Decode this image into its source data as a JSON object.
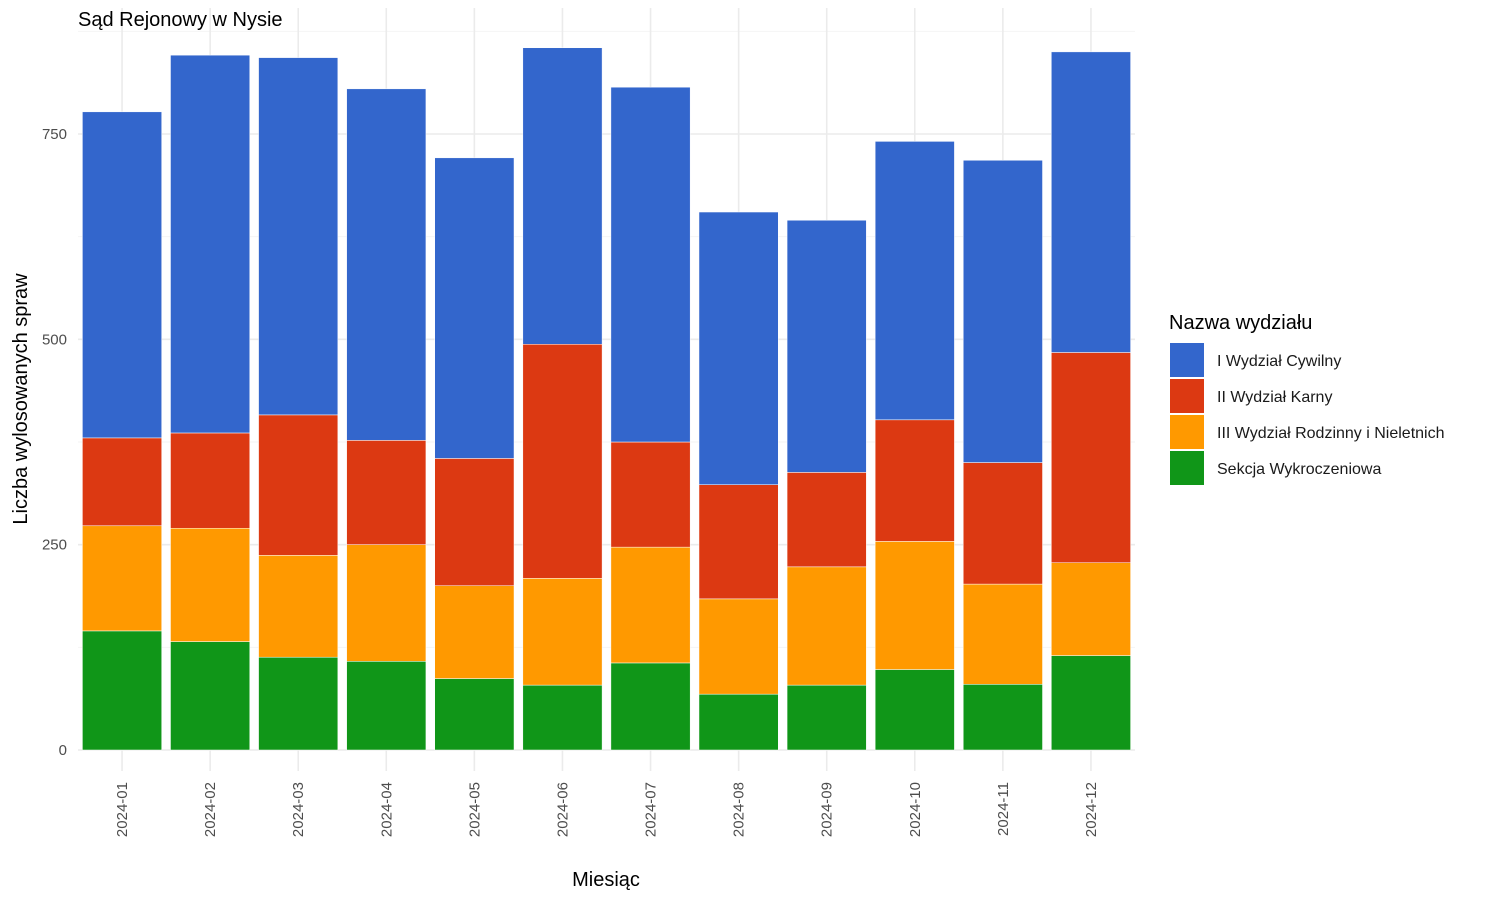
{
  "chart_data": {
    "type": "bar",
    "stacked": true,
    "title": "Sąd Rejonowy w Nysie",
    "xlabel": "Miesiąc",
    "ylabel": "Liczba wylosowanych spraw",
    "ylim": [
      0,
      900
    ],
    "y_ticks": [
      0,
      250,
      500,
      750
    ],
    "grid": true,
    "legend_position": "right",
    "legend_title": "Nazwa wydziału",
    "categories": [
      "2024-01",
      "2024-02",
      "2024-03",
      "2024-04",
      "2024-05",
      "2024-06",
      "2024-07",
      "2024-08",
      "2024-09",
      "2024-10",
      "2024-11",
      "2024-12"
    ],
    "series": [
      {
        "name": "Sekcja Wykroczeniowa",
        "color": "#109618",
        "values": [
          145,
          132,
          113,
          108,
          87,
          79,
          106,
          68,
          79,
          98,
          80,
          115
        ]
      },
      {
        "name": "III Wydział Rodzinny i Nieletnich",
        "color": "#ff9900",
        "values": [
          128,
          138,
          124,
          142,
          113,
          130,
          141,
          116,
          144,
          156,
          122,
          113
        ]
      },
      {
        "name": "II Wydział Karny",
        "color": "#dc3912",
        "values": [
          107,
          116,
          171,
          127,
          155,
          285,
          128,
          139,
          115,
          148,
          148,
          256
        ]
      },
      {
        "name": "I Wydział Cywilny",
        "color": "#3366cc",
        "values": [
          397,
          460,
          435,
          428,
          366,
          361,
          432,
          332,
          307,
          339,
          368,
          366
        ]
      }
    ]
  }
}
